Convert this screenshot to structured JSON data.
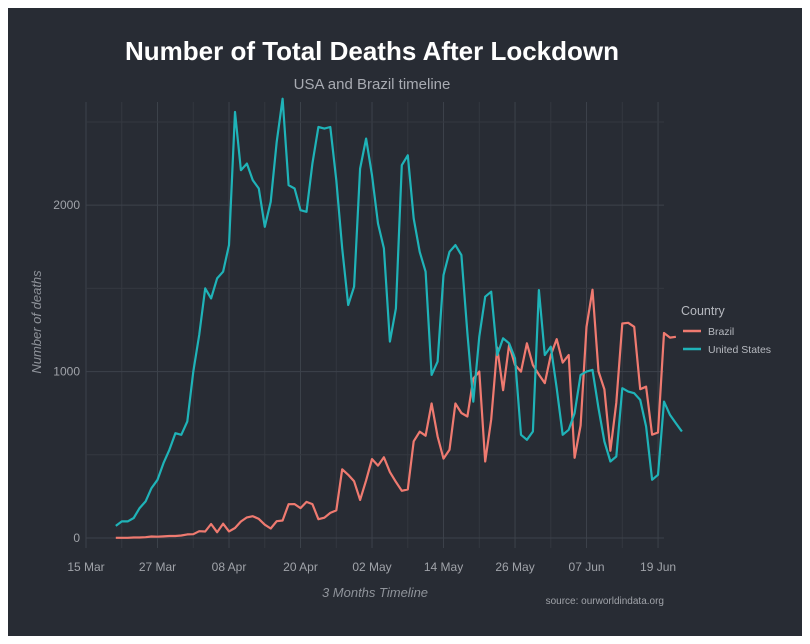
{
  "chart_data": {
    "type": "line",
    "title": "Number of Total Deaths After Lockdown",
    "subtitle": "USA and Brazil timeline",
    "xlabel": "3 Months Timeline",
    "ylabel": "Number of deaths",
    "caption": "source: ourworldindata.org",
    "x_start_date": "2020-03-15",
    "x_day_range": [
      0,
      97
    ],
    "x_ticks": [
      {
        "day": 0,
        "label": "15 Mar"
      },
      {
        "day": 12,
        "label": "27 Mar"
      },
      {
        "day": 24,
        "label": "08 Apr"
      },
      {
        "day": 36,
        "label": "20 Apr"
      },
      {
        "day": 48,
        "label": "02 May"
      },
      {
        "day": 60,
        "label": "14 May"
      },
      {
        "day": 72,
        "label": "26 May"
      },
      {
        "day": 84,
        "label": "07 Jun"
      },
      {
        "day": 96,
        "label": "19 Jun"
      }
    ],
    "ylim": [
      -60,
      2620
    ],
    "y_ticks": [
      0,
      1000,
      2000
    ],
    "grid": true,
    "legend": {
      "title": "Country",
      "position": "right"
    },
    "colors": {
      "Brazil": "#ef7a70",
      "United States": "#1fb3b8"
    },
    "series": [
      {
        "name": "Brazil",
        "start_day": 5,
        "values": [
          1,
          1,
          1,
          3,
          3,
          5,
          9,
          8,
          10,
          12,
          12,
          15,
          22,
          23,
          41,
          39,
          84,
          35,
          86,
          40,
          60,
          99,
          124,
          131,
          115,
          80,
          57,
          101,
          105,
          203,
          204,
          180,
          217,
          204,
          113,
          122,
          151,
          166,
          413,
          380,
          341,
          229,
          346,
          474,
          435,
          485,
          396,
          337,
          284,
          292,
          581,
          639,
          615,
          808,
          610,
          477,
          530,
          808,
          751,
          730,
          958,
          1000,
          460,
          712,
          1145,
          888,
          1161,
          1040,
          1000,
          1170,
          1039,
          982,
          931,
          1099,
          1195,
          1054,
          1100,
          482,
          676,
          1269,
          1492,
          1001,
          893,
          524,
          813,
          1289,
          1293,
          1269,
          894,
          909,
          621,
          634,
          1232,
          1204,
          1209
        ]
      },
      {
        "name": "United States",
        "start_day": 5,
        "values": [
          73,
          100,
          100,
          120,
          180,
          220,
          300,
          350,
          450,
          530,
          630,
          620,
          700,
          1000,
          1220,
          1500,
          1440,
          1560,
          1600,
          1760,
          2560,
          2210,
          2250,
          2150,
          2100,
          1870,
          2020,
          2380,
          2640,
          2120,
          2100,
          1970,
          1960,
          2250,
          2470,
          2460,
          2470,
          2150,
          1740,
          1400,
          1510,
          2220,
          2400,
          2180,
          1890,
          1740,
          1180,
          1380,
          2240,
          2300,
          1920,
          1720,
          1600,
          980,
          1060,
          1580,
          1720,
          1760,
          1700,
          1230,
          820,
          1210,
          1450,
          1480,
          1100,
          1200,
          1170,
          1080,
          620,
          590,
          640,
          1490,
          1100,
          1150,
          900,
          620,
          650,
          750,
          980,
          1000,
          1010,
          780,
          580,
          460,
          490,
          900,
          880,
          870,
          830,
          670,
          350,
          380,
          820,
          740,
          690,
          640
        ]
      }
    ]
  }
}
